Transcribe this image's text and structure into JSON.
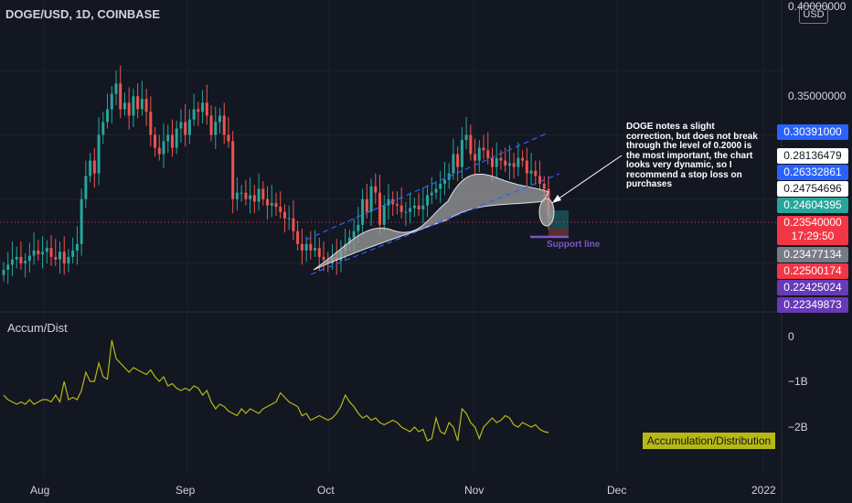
{
  "header": {
    "symbol": "DOGE/USD, 1D, COINBASE",
    "currency_button": "USD"
  },
  "price_axis": {
    "ticks": [
      {
        "label": "0.40000000",
        "value": 0.4
      },
      {
        "label": "0.35000000",
        "value": 0.35
      }
    ],
    "labels": [
      {
        "text": "0.30391000",
        "value": 0.30391,
        "bg": "#2962ff",
        "fg": "#ffffff"
      },
      {
        "text": "0.28136479",
        "value": 0.28136,
        "bg": "#ffffff",
        "fg": "#131722"
      },
      {
        "text": "0.26332861",
        "value": 0.26333,
        "bg": "#2962ff",
        "fg": "#ffffff"
      },
      {
        "text": "0.24754696",
        "value": 0.24755,
        "bg": "#ffffff",
        "fg": "#131722"
      },
      {
        "text": "0.24604395",
        "value": 0.24604,
        "bg": "#26a69a",
        "fg": "#ffffff"
      },
      {
        "text": "0.23540000",
        "value": 0.2354,
        "bg": "#f23645",
        "fg": "#ffffff",
        "sub": "17:29:50"
      },
      {
        "text": "0.23477134",
        "value": 0.23477,
        "bg": "#787b86",
        "fg": "#ffffff"
      },
      {
        "text": "0.22500174",
        "value": 0.225,
        "bg": "#f23645",
        "fg": "#ffffff"
      },
      {
        "text": "0.22425024",
        "value": 0.22425,
        "bg": "#673ab7",
        "fg": "#ffffff"
      },
      {
        "text": "0.22349873",
        "value": 0.2235,
        "bg": "#673ab7",
        "fg": "#ffffff"
      }
    ]
  },
  "time_axis": [
    "Aug",
    "Sep",
    "Oct",
    "Nov",
    "Dec",
    "2022"
  ],
  "indicator": {
    "title": "Accum/Dist",
    "ticks": [
      "0",
      "−1B",
      "−2B"
    ],
    "tag": "Accumulation/Distribution",
    "color": "#b8b814"
  },
  "annotations": {
    "note": "DOGE notes a slight correction, but does not break through the level of 0.2000 is the most important, the chart looks very dynamic, so I recommend a stop loss on purchases",
    "support_label": "Support line"
  },
  "colors": {
    "up": "#26a69a",
    "down": "#ef5350",
    "channel": "#2962ff",
    "support": "#7e57c2"
  },
  "chart_data": {
    "type": "candlestick",
    "price_range": [
      0.19,
      0.4
    ],
    "closes": [
      0.195,
      0.199,
      0.203,
      0.205,
      0.2,
      0.202,
      0.206,
      0.21,
      0.207,
      0.209,
      0.212,
      0.205,
      0.203,
      0.209,
      0.2,
      0.205,
      0.21,
      0.215,
      0.25,
      0.268,
      0.28,
      0.27,
      0.3,
      0.31,
      0.32,
      0.332,
      0.34,
      0.32,
      0.325,
      0.315,
      0.33,
      0.32,
      0.328,
      0.318,
      0.3,
      0.29,
      0.285,
      0.295,
      0.3,
      0.29,
      0.305,
      0.31,
      0.3,
      0.312,
      0.32,
      0.318,
      0.325,
      0.315,
      0.3,
      0.31,
      0.315,
      0.3,
      0.295,
      0.25,
      0.255,
      0.255,
      0.25,
      0.253,
      0.248,
      0.258,
      0.25,
      0.245,
      0.247,
      0.244,
      0.24,
      0.235,
      0.235,
      0.225,
      0.215,
      0.21,
      0.215,
      0.21,
      0.212,
      0.205,
      0.203,
      0.2,
      0.205,
      0.202,
      0.21,
      0.215,
      0.22,
      0.225,
      0.23,
      0.25,
      0.24,
      0.26,
      0.255,
      0.23,
      0.245,
      0.25,
      0.246,
      0.245,
      0.24,
      0.24,
      0.243,
      0.245,
      0.242,
      0.245,
      0.253,
      0.255,
      0.258,
      0.262,
      0.265,
      0.27,
      0.285,
      0.275,
      0.296,
      0.3,
      0.285,
      0.28,
      0.29,
      0.288,
      0.282,
      0.275,
      0.282,
      0.28,
      0.276,
      0.278,
      0.275,
      0.282,
      0.28,
      0.27,
      0.272,
      0.268,
      0.262,
      0.258,
      0.2354
    ],
    "accum_dist": [
      -1.3,
      -1.4,
      -1.45,
      -1.5,
      -1.45,
      -1.5,
      -1.4,
      -1.5,
      -1.45,
      -1.4,
      -1.4,
      -1.45,
      -1.3,
      -1.45,
      -1.0,
      -1.4,
      -1.35,
      -1.4,
      -1.2,
      -0.8,
      -1.0,
      -1.0,
      -0.6,
      -0.9,
      -0.95,
      -0.1,
      -0.5,
      -0.6,
      -0.7,
      -0.8,
      -0.7,
      -0.75,
      -0.8,
      -0.85,
      -0.75,
      -0.9,
      -1.0,
      -0.9,
      -1.1,
      -1.05,
      -1.15,
      -1.2,
      -1.15,
      -1.2,
      -1.1,
      -1.15,
      -1.3,
      -1.2,
      -1.45,
      -1.6,
      -1.5,
      -1.55,
      -1.65,
      -1.7,
      -1.75,
      -1.6,
      -1.7,
      -1.6,
      -1.65,
      -1.7,
      -1.6,
      -1.55,
      -1.5,
      -1.45,
      -1.25,
      -1.35,
      -1.45,
      -1.5,
      -1.55,
      -1.75,
      -1.7,
      -1.85,
      -1.8,
      -1.75,
      -1.8,
      -1.85,
      -1.8,
      -1.7,
      -1.55,
      -1.3,
      -1.45,
      -1.55,
      -1.7,
      -1.8,
      -1.75,
      -1.85,
      -1.8,
      -1.9,
      -1.95,
      -1.9,
      -1.85,
      -1.9,
      -2.0,
      -2.05,
      -2.1,
      -2.0,
      -2.1,
      -2.05,
      -2.3,
      -2.25,
      -1.8,
      -2.1,
      -2.15,
      -1.9,
      -2.0,
      -2.3,
      -1.6,
      -1.7,
      -1.9,
      -2.0,
      -2.25,
      -2.0,
      -1.9,
      -1.8,
      -1.9,
      -1.85,
      -1.75,
      -1.8,
      -1.95,
      -2.0,
      -1.9,
      -1.95,
      -2.0,
      -1.95,
      -2.05,
      -2.1,
      -2.12
    ],
    "accum_range": [
      0.3,
      -2.7
    ]
  }
}
